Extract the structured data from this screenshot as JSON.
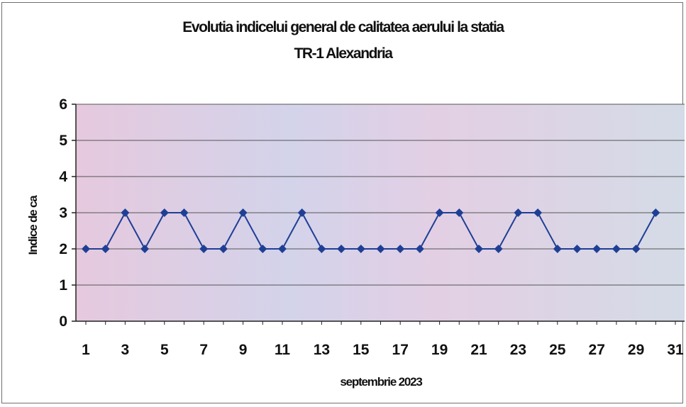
{
  "chart_data": {
    "type": "line",
    "title": "Evolutia indicelui general de calitatea aerului la statia",
    "subtitle": "TR-1 Alexandria",
    "xlabel": "septembrie 2023",
    "ylabel": "Indice de ca",
    "x": [
      1,
      2,
      3,
      4,
      5,
      6,
      7,
      8,
      9,
      10,
      11,
      12,
      13,
      14,
      15,
      16,
      17,
      18,
      19,
      20,
      21,
      22,
      23,
      24,
      25,
      26,
      27,
      28,
      29,
      30
    ],
    "x_tick_labels": [
      "1",
      "3",
      "5",
      "7",
      "9",
      "11",
      "13",
      "15",
      "17",
      "19",
      "21",
      "23",
      "25",
      "27",
      "29",
      "31"
    ],
    "y_tick_labels": [
      "0",
      "1",
      "2",
      "3",
      "4",
      "5",
      "6"
    ],
    "xlim": [
      1,
      31
    ],
    "ylim": [
      0,
      6
    ],
    "grid": true,
    "series": [
      {
        "values": [
          2,
          2,
          3,
          2,
          3,
          3,
          2,
          2,
          3,
          2,
          2,
          3,
          2,
          2,
          2,
          2,
          2,
          2,
          3,
          3,
          2,
          2,
          3,
          3,
          2,
          2,
          2,
          2,
          2,
          3
        ],
        "color": "#1f3f95"
      }
    ],
    "plot_background": "#dcd2e8",
    "gridline_color": "#555555"
  }
}
